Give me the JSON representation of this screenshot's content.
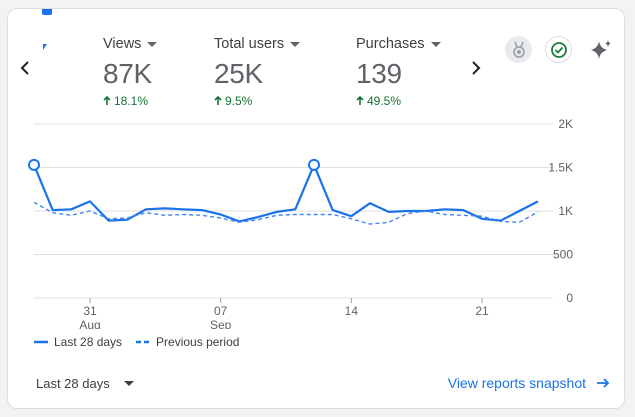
{
  "metrics": [
    {
      "label": "Views",
      "value": "87K",
      "change": "18.1%",
      "direction": "up"
    },
    {
      "label": "Total users",
      "value": "25K",
      "change": "9.5%",
      "direction": "up"
    },
    {
      "label": "Purchases",
      "value": "139",
      "change": "49.5%",
      "direction": "up"
    }
  ],
  "header_icons": [
    "award-badge-icon",
    "check-circle-icon",
    "sparkle-insights-icon"
  ],
  "colors": {
    "series_primary": "#1a73e8",
    "series_previous": "#4285f4",
    "positive_change": "#137333",
    "link": "#1a73e8",
    "gridline": "#e0e0e0"
  },
  "chart_data": {
    "type": "line",
    "y_ticks": [
      "2K",
      "1.5K",
      "1K",
      "500",
      "0"
    ],
    "ylim": [
      0,
      2000
    ],
    "x_ticks": [
      {
        "day": "31",
        "month": "Aug"
      },
      {
        "day": "07",
        "month": "Sep"
      },
      {
        "day": "14",
        "month": ""
      },
      {
        "day": "21",
        "month": ""
      }
    ],
    "tick_day_index": [
      3,
      10,
      17,
      24
    ],
    "grid": true,
    "series": [
      {
        "name": "Last 28 days",
        "style": "solid",
        "values": [
          1530,
          1010,
          1020,
          1110,
          890,
          900,
          1020,
          1030,
          1020,
          1010,
          960,
          880,
          930,
          990,
          1020,
          1530,
          1010,
          940,
          1090,
          990,
          1000,
          1000,
          1020,
          1010,
          910,
          890,
          1000,
          1110
        ]
      },
      {
        "name": "Previous period",
        "style": "dashed",
        "values": [
          1100,
          980,
          950,
          1000,
          910,
          920,
          980,
          950,
          960,
          950,
          920,
          870,
          900,
          950,
          960,
          960,
          960,
          910,
          850,
          870,
          970,
          1000,
          960,
          950,
          940,
          880,
          870,
          990
        ]
      }
    ],
    "highlighted_points": [
      0,
      15
    ]
  },
  "legend": {
    "current": "Last 28 days",
    "previous": "Previous period"
  },
  "footer": {
    "date_range": "Last 28 days",
    "link_text": "View reports snapshot"
  }
}
